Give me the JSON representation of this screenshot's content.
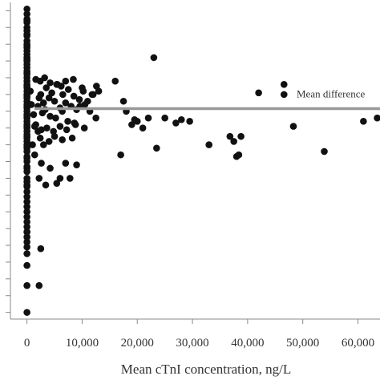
{
  "chart_data": {
    "type": "scatter",
    "title": "",
    "xlabel": "Mean cTnI concentration, ng/L",
    "ylabel": "",
    "xlim": [
      -3000,
      64000
    ],
    "ylim": [
      -9.2,
      0.2
    ],
    "x_ticks": [
      0,
      10000,
      20000,
      30000,
      40000,
      50000,
      60000
    ],
    "x_tick_labels": [
      "0",
      "10,000",
      "20,000",
      "30,000",
      "40,000",
      "50,000",
      "60,000"
    ],
    "y_tick_values": [
      0,
      -0.5,
      -1,
      -1.5,
      -2,
      -2.5,
      -3,
      -3.5,
      -4,
      -4.5,
      -5,
      -5.5,
      -6,
      -6.5,
      -7,
      -7.5,
      -8,
      -8.5,
      -9
    ],
    "y_tick_labels_visible": false,
    "grid": false,
    "legend": "none",
    "mean_difference": {
      "label": "Mean difference",
      "y": -2.92,
      "color": "#999999"
    },
    "marker_color": "#111111",
    "series": [
      {
        "x": [
          0,
          0,
          0,
          0,
          0,
          0,
          0,
          0,
          0,
          0,
          0,
          0,
          0,
          0,
          0,
          0,
          0,
          0,
          0,
          0,
          0,
          0,
          0,
          0,
          0,
          0,
          0,
          0,
          0,
          0,
          0,
          0,
          0,
          0,
          0,
          0,
          0,
          0,
          0,
          0,
          0,
          0,
          0,
          0,
          0,
          0,
          0,
          0,
          0,
          0,
          0,
          0,
          0,
          0,
          0,
          0,
          0,
          0,
          0,
          0,
          0,
          0,
          0,
          0,
          0,
          0,
          0,
          0,
          0,
          0,
          0,
          0,
          0,
          0,
          0,
          0,
          0,
          0,
          0,
          0,
          600,
          800,
          1200,
          1600,
          2000,
          2400,
          1000,
          1400,
          2200,
          2500,
          3000,
          3500,
          4000,
          4500,
          5000,
          5500,
          6000,
          6500,
          7000,
          7500,
          8000,
          8500,
          9000,
          9500,
          10000,
          10500,
          11000,
          12000,
          12500,
          13000,
          2000,
          2800,
          3300,
          4200,
          5200,
          6400,
          7400,
          8600,
          9600,
          11400,
          1400,
          2600,
          3600,
          4800,
          6000,
          7200,
          8800,
          10400,
          1600,
          2400,
          3200,
          4200,
          5400,
          6200,
          7000,
          8400,
          10200,
          11800,
          12600,
          3000,
          4000,
          5000,
          6400,
          8200,
          2600,
          4200,
          6000,
          7000,
          9000,
          2200,
          3400,
          5400,
          7800,
          16000,
          17000,
          17500,
          18000,
          19000,
          19500,
          20000,
          21000,
          22000,
          23500,
          23000,
          25000,
          27000,
          28000,
          29500,
          33000,
          36800,
          38000,
          38400,
          38800,
          37500,
          42000,
          46600,
          46600,
          48300,
          53900,
          61000,
          63500,
          2500,
          2200
        ],
        "y": [
          0.05,
          -0.1,
          -0.25,
          -0.35,
          -0.5,
          -0.6,
          -0.75,
          -0.9,
          -1.0,
          -1.1,
          -1.2,
          -1.3,
          -1.4,
          -1.5,
          -1.6,
          -1.7,
          -1.8,
          -1.9,
          -2.0,
          -2.1,
          -2.2,
          -2.3,
          -2.4,
          -2.5,
          -2.6,
          -2.7,
          -2.8,
          -2.9,
          -3.0,
          -3.1,
          -3.2,
          -3.3,
          -3.4,
          -3.5,
          -3.6,
          -3.7,
          -3.8,
          -3.9,
          -4.0,
          -4.1,
          -4.2,
          -4.35,
          -4.5,
          -4.65,
          -4.8,
          -5.0,
          -5.1,
          -5.25,
          -5.4,
          -5.55,
          -5.7,
          -5.85,
          -6.0,
          -6.15,
          -6.3,
          -6.45,
          -6.6,
          -6.75,
          -6.9,
          -7.05,
          -7.25,
          -7.6,
          -8.2,
          -9.0,
          -0.3,
          -0.7,
          -1.05,
          -1.45,
          -1.85,
          -2.25,
          -2.55,
          -2.85,
          -3.15,
          -3.45,
          -3.75,
          -4.05,
          -4.4,
          -4.7,
          -5.2,
          -6.6,
          -2.4,
          -2.8,
          -3.1,
          -3.4,
          -3.6,
          -3.8,
          -4.0,
          -4.3,
          -2.6,
          -2.5,
          -2.75,
          -2.3,
          -2.6,
          -2.45,
          -2.7,
          -2.2,
          -2.9,
          -2.5,
          -2.75,
          -2.35,
          -2.85,
          -2.55,
          -2.95,
          -2.65,
          -2.3,
          -2.8,
          -2.7,
          -2.5,
          -3.2,
          -2.4,
          -2.85,
          -3.05,
          -2.95,
          -3.15,
          -3.2,
          -3.0,
          -3.3,
          -3.35,
          -2.85,
          -3.0,
          -3.45,
          -3.55,
          -3.5,
          -3.6,
          -3.45,
          -3.55,
          -3.4,
          -3.5,
          -2.05,
          -2.1,
          -2.0,
          -2.15,
          -2.2,
          -2.25,
          -2.1,
          -2.05,
          -2.4,
          -2.5,
          -2.25,
          -4.0,
          -3.9,
          -3.75,
          -3.85,
          -3.8,
          -4.55,
          -4.7,
          -5.0,
          -4.55,
          -4.6,
          -5.0,
          -5.2,
          -5.15,
          -5.0,
          -2.1,
          -4.3,
          -2.7,
          -3.0,
          -3.4,
          -3.25,
          -3.3,
          -3.5,
          -3.2,
          -4.1,
          -1.4,
          -3.2,
          -3.35,
          -3.25,
          -3.3,
          -4.0,
          -3.75,
          -4.35,
          -4.3,
          -3.75,
          -3.9,
          -2.45,
          -2.2,
          -2.5,
          -3.45,
          -4.2,
          -3.3,
          -3.2,
          -7.1,
          -8.2
        ]
      }
    ]
  }
}
